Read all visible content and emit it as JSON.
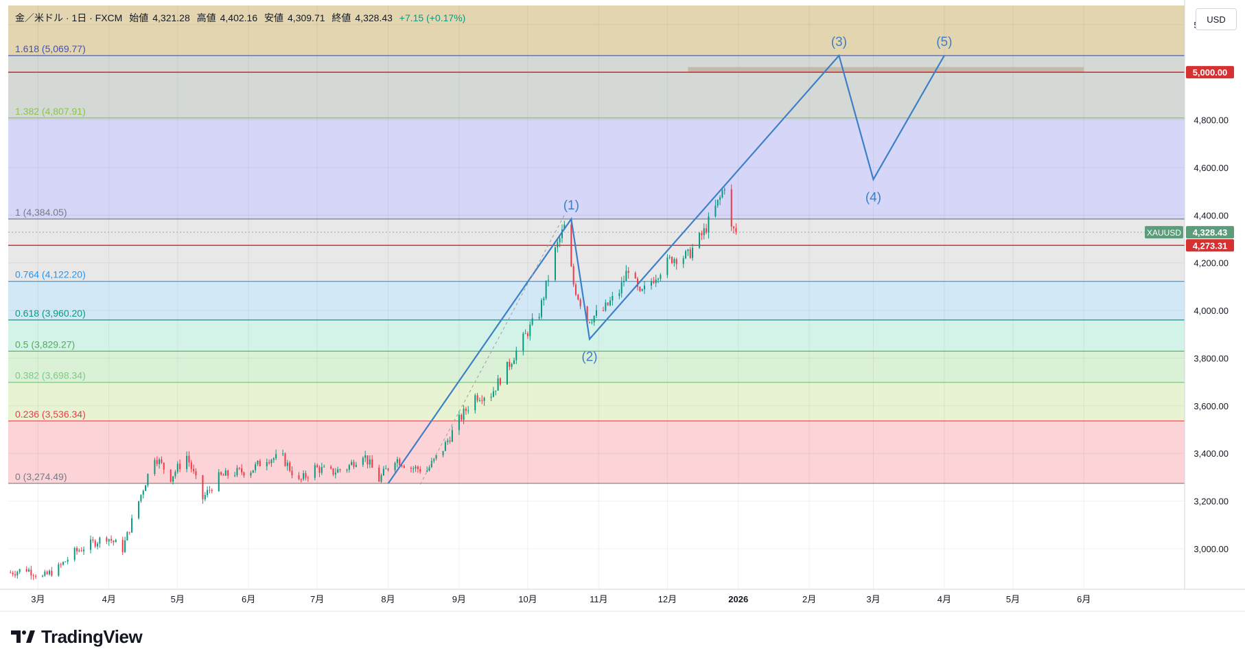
{
  "header": {
    "symbol_name": "金／米ドル · 1日 · FXCM",
    "open_label": "始値",
    "open": "4,321.28",
    "high_label": "高値",
    "high": "4,402.16",
    "low_label": "安値",
    "low": "4,309.71",
    "close_label": "終値",
    "close": "4,328.43",
    "change": "+7.15 (+0.17%)"
  },
  "currency": "USD",
  "brand": "TradingView",
  "colors": {
    "up": "#089981",
    "down": "#f23645",
    "wave": "#3d7fc6",
    "level_red": "#d63031",
    "price_tag": "#5b9c7a"
  },
  "chart_data": {
    "type": "candlestick",
    "symbol": "XAUUSD",
    "y_axis": {
      "range": [
        2830,
        5280
      ],
      "ticks": [
        3000,
        3200,
        3400,
        3600,
        3800,
        4000,
        4200,
        4400,
        4600,
        4800,
        5000,
        5200
      ],
      "tick_labels": [
        "3,000.00",
        "3,200.00",
        "3,400.00",
        "3,600.00",
        "3,800.00",
        "4,000.00",
        "4,200.00",
        "4,400.00",
        "4,600.00",
        "4,800.00",
        "5,000.00",
        "5,200.00"
      ]
    },
    "x_axis": {
      "range": [
        "2025-02-16",
        "2026-07-15"
      ],
      "ticks": [
        {
          "date": "2025-03-01",
          "label": "3月"
        },
        {
          "date": "2025-04-01",
          "label": "4月"
        },
        {
          "date": "2025-05-01",
          "label": "5月"
        },
        {
          "date": "2025-06-01",
          "label": "6月"
        },
        {
          "date": "2025-07-01",
          "label": "7月"
        },
        {
          "date": "2025-08-01",
          "label": "8月"
        },
        {
          "date": "2025-09-01",
          "label": "9月"
        },
        {
          "date": "2025-10-01",
          "label": "10月"
        },
        {
          "date": "2025-11-01",
          "label": "11月"
        },
        {
          "date": "2025-12-01",
          "label": "12月"
        },
        {
          "date": "2026-01-01",
          "label": "2026",
          "bold": true
        },
        {
          "date": "2026-02-01",
          "label": "2月"
        },
        {
          "date": "2026-03-01",
          "label": "3月"
        },
        {
          "date": "2026-04-01",
          "label": "4月"
        },
        {
          "date": "2026-05-01",
          "label": "5月"
        },
        {
          "date": "2026-06-01",
          "label": "6月"
        }
      ]
    },
    "close_path": [
      [
        "2025-02-17",
        2900
      ],
      [
        "2025-02-24",
        2915
      ],
      [
        "2025-03-03",
        2880
      ],
      [
        "2025-03-10",
        2920
      ],
      [
        "2025-03-17",
        2985
      ],
      [
        "2025-03-24",
        3020
      ],
      [
        "2025-03-31",
        3050
      ],
      [
        "2025-04-07",
        3000
      ],
      [
        "2025-04-14",
        3200
      ],
      [
        "2025-04-21",
        3390
      ],
      [
        "2025-04-28",
        3300
      ],
      [
        "2025-05-05",
        3390
      ],
      [
        "2025-05-12",
        3210
      ],
      [
        "2025-05-19",
        3300
      ],
      [
        "2025-05-26",
        3320
      ],
      [
        "2025-06-02",
        3330
      ],
      [
        "2025-06-09",
        3380
      ],
      [
        "2025-06-16",
        3380
      ],
      [
        "2025-06-23",
        3280
      ],
      [
        "2025-06-30",
        3340
      ],
      [
        "2025-07-07",
        3320
      ],
      [
        "2025-07-14",
        3340
      ],
      [
        "2025-07-21",
        3400
      ],
      [
        "2025-07-28",
        3290
      ],
      [
        "2025-08-04",
        3380
      ],
      [
        "2025-08-11",
        3340
      ],
      [
        "2025-08-18",
        3330
      ],
      [
        "2025-08-25",
        3420
      ],
      [
        "2025-09-01",
        3540
      ],
      [
        "2025-09-08",
        3640
      ],
      [
        "2025-09-15",
        3650
      ],
      [
        "2025-09-22",
        3760
      ],
      [
        "2025-09-29",
        3880
      ],
      [
        "2025-10-06",
        3990
      ],
      [
        "2025-10-13",
        4250
      ],
      [
        "2025-10-17",
        4350
      ],
      [
        "2025-10-21",
        4110
      ],
      [
        "2025-10-27",
        3960
      ],
      [
        "2025-11-03",
        4000
      ],
      [
        "2025-11-10",
        4080
      ],
      [
        "2025-11-14",
        4180
      ],
      [
        "2025-11-19",
        4060
      ],
      [
        "2025-11-26",
        4150
      ],
      [
        "2025-12-03",
        4220
      ],
      [
        "2025-12-10",
        4230
      ],
      [
        "2025-12-17",
        4330
      ],
      [
        "2025-12-24",
        4470
      ],
      [
        "2025-12-26",
        4530
      ],
      [
        "2025-12-29",
        4340
      ],
      [
        "2025-12-31",
        4328.43
      ]
    ],
    "fibonacci_levels": [
      {
        "ratio": "0",
        "value": 3274.49,
        "label": "0 (3,274.49)",
        "color": "#787b86"
      },
      {
        "ratio": "0.236",
        "value": 3536.34,
        "label": "0.236 (3,536.34)",
        "color": "#f23645"
      },
      {
        "ratio": "0.382",
        "value": 3698.34,
        "label": "0.382 (3,698.34)",
        "color": "#81c784"
      },
      {
        "ratio": "0.5",
        "value": 3829.27,
        "label": "0.5 (3,829.27)",
        "color": "#4caf50"
      },
      {
        "ratio": "0.618",
        "value": 3960.2,
        "label": "0.618 (3,960.20)",
        "color": "#089981"
      },
      {
        "ratio": "0.764",
        "value": 4122.2,
        "label": "0.764 (4,122.20)",
        "color": "#2196f3"
      },
      {
        "ratio": "1",
        "value": 4384.05,
        "label": "1 (4,384.05)",
        "color": "#787b86"
      },
      {
        "ratio": "1.382",
        "value": 4807.91,
        "label": "1.382 (4,807.91)",
        "color": "#8bc34a"
      },
      {
        "ratio": "1.618",
        "value": 5069.77,
        "label": "1.618 (5,069.77)",
        "color": "#3f51b5"
      }
    ],
    "fib_zone_fills": [
      "rgba(242,54,69,0.22)",
      "rgba(186,220,130,0.35)",
      "rgba(150,215,140,0.35)",
      "rgba(130,220,190,0.35)",
      "rgba(130,190,230,0.35)",
      "rgba(190,190,190,0.35)",
      "rgba(130,130,235,0.33)",
      "rgba(160,170,165,0.45)",
      "rgba(190,155,70,0.42)"
    ],
    "elliott_wave": [
      {
        "date": "2025-08-01",
        "value": 3274,
        "label": ""
      },
      {
        "date": "2025-10-20",
        "value": 4384,
        "label": "(1)"
      },
      {
        "date": "2025-10-28",
        "value": 3880,
        "label": "(2)"
      },
      {
        "date": "2026-02-14",
        "value": 5070,
        "label": "(3)"
      },
      {
        "date": "2026-03-01",
        "value": 4550,
        "label": "(4)"
      },
      {
        "date": "2026-04-01",
        "value": 5070,
        "label": "(5)"
      }
    ],
    "horizontal_lines": [
      {
        "value": 5000,
        "label": "5,000.00",
        "color": "#d63031"
      },
      {
        "value": 4273.31,
        "label": "4,273.31",
        "color": "#d63031"
      }
    ],
    "current_price": {
      "value": 4328.43,
      "label": "4,328.43",
      "symbol": "XAUUSD"
    },
    "resistance_band": {
      "from": "2025-12-10",
      "to": "2026-06-01",
      "value": 5010
    }
  }
}
